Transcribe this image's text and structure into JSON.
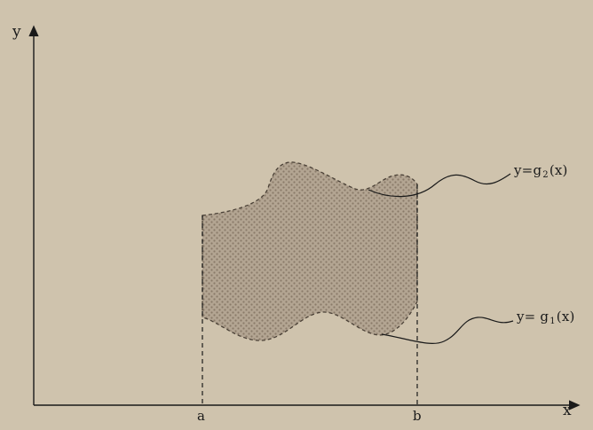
{
  "axes": {
    "y_label": "y",
    "x_label": "x"
  },
  "bounds": {
    "lower": "a",
    "upper": "b"
  },
  "curves": {
    "upper": {
      "prefix": "y=g",
      "subscript": "2",
      "suffix": "(x)"
    },
    "lower": {
      "prefix": "y= g",
      "subscript": "1",
      "suffix": "(x)"
    }
  },
  "colors": {
    "background": "#cfc3ad",
    "region_fill": "#b3a592",
    "region_dots": "#8a7b69",
    "line": "#1a1a1a"
  }
}
